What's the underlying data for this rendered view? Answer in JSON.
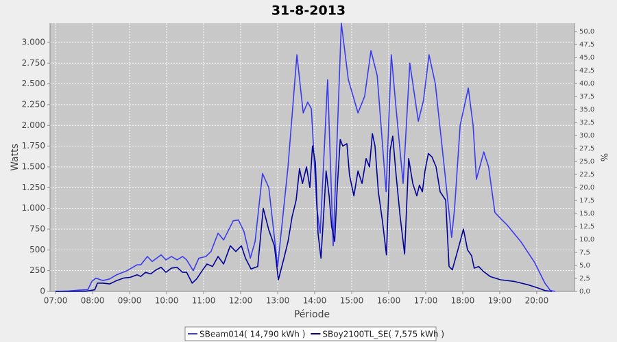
{
  "chart_data": {
    "type": "line",
    "title": "31-8-2013",
    "xlabel": "Période",
    "ylabel": "Watts",
    "y2label": "%",
    "grid": true,
    "legend": "bottom",
    "xlim": [
      6.85,
      21.02
    ],
    "xticks": [
      {
        "value": 7,
        "label": "07:00"
      },
      {
        "value": 8,
        "label": "08:00"
      },
      {
        "value": 9,
        "label": "09:00"
      },
      {
        "value": 10,
        "label": "10:00"
      },
      {
        "value": 11,
        "label": "11:00"
      },
      {
        "value": 12,
        "label": "12:00"
      },
      {
        "value": 13,
        "label": "13:00"
      },
      {
        "value": 14,
        "label": "14:00"
      },
      {
        "value": 15,
        "label": "15:00"
      },
      {
        "value": 16,
        "label": "16:00"
      },
      {
        "value": 17,
        "label": "17:00"
      },
      {
        "value": 18,
        "label": "18:00"
      },
      {
        "value": 19,
        "label": "19:00"
      },
      {
        "value": 20,
        "label": "20:00"
      }
    ],
    "ylim": [
      0,
      3230
    ],
    "yticks": [
      0,
      250,
      500,
      750,
      {
        "value": 1000,
        "label": "1.000"
      },
      {
        "value": 1250,
        "label": "1.250"
      },
      {
        "value": 1500,
        "label": "1.500"
      },
      {
        "value": 1750,
        "label": "1.750"
      },
      {
        "value": 2000,
        "label": "2.000"
      },
      {
        "value": 2250,
        "label": "2.250"
      },
      {
        "value": 2500,
        "label": "2.500"
      },
      {
        "value": 2750,
        "label": "2.750"
      },
      {
        "value": 3000,
        "label": "3.000"
      }
    ],
    "y2lim": [
      0,
      51.6
    ],
    "y2ticks": [
      {
        "value": 0,
        "label": "0,0"
      },
      {
        "value": 2.5,
        "label": "2,5"
      },
      {
        "value": 5,
        "label": "5,0"
      },
      {
        "value": 7.5,
        "label": "7,5"
      },
      {
        "value": 10,
        "label": "10,0"
      },
      {
        "value": 12.5,
        "label": "12,5"
      },
      {
        "value": 15,
        "label": "15,0"
      },
      {
        "value": 17.5,
        "label": "17,5"
      },
      {
        "value": 20,
        "label": "20,0"
      },
      {
        "value": 22.5,
        "label": "22,5"
      },
      {
        "value": 25,
        "label": "25,0"
      },
      {
        "value": 27.5,
        "label": "27,5"
      },
      {
        "value": 30,
        "label": "30,0"
      },
      {
        "value": 32.5,
        "label": "32,5"
      },
      {
        "value": 35,
        "label": "35,0"
      },
      {
        "value": 37.5,
        "label": "37,5"
      },
      {
        "value": 40,
        "label": "40,0"
      },
      {
        "value": 42.5,
        "label": "42,5"
      },
      {
        "value": 45,
        "label": "45,0"
      },
      {
        "value": 47.5,
        "label": "47,5"
      },
      {
        "value": 50,
        "label": "50,0"
      }
    ],
    "series": [
      {
        "name": "SBeam014( 14,790 kWh )",
        "color": "#3a3aee",
        "x": [
          7.0,
          7.35,
          7.63,
          7.87,
          7.98,
          8.09,
          8.28,
          8.46,
          8.65,
          8.93,
          9.2,
          9.3,
          9.48,
          9.61,
          9.85,
          9.98,
          10.13,
          10.28,
          10.43,
          10.54,
          10.72,
          10.87,
          11.06,
          11.2,
          11.39,
          11.54,
          11.8,
          11.94,
          12.09,
          12.26,
          12.39,
          12.59,
          12.76,
          13.0,
          13.28,
          13.52,
          13.69,
          13.81,
          13.91,
          14.06,
          14.15,
          14.35,
          14.5,
          14.72,
          14.91,
          15.17,
          15.35,
          15.52,
          15.69,
          15.93,
          16.07,
          16.2,
          16.39,
          16.57,
          16.8,
          16.94,
          17.09,
          17.26,
          17.5,
          17.7,
          17.78,
          17.93,
          18.15,
          18.28,
          18.37,
          18.57,
          18.7,
          18.87,
          19.02,
          19.2,
          19.57,
          19.94,
          20.22,
          20.37,
          20.5
        ],
        "values": [
          0,
          5,
          15,
          20,
          120,
          160,
          130,
          150,
          200,
          250,
          320,
          320,
          420,
          360,
          440,
          380,
          420,
          380,
          420,
          380,
          250,
          400,
          420,
          480,
          700,
          620,
          850,
          860,
          720,
          400,
          600,
          1420,
          1250,
          300,
          1500,
          2850,
          2150,
          2280,
          2200,
          1000,
          700,
          2550,
          550,
          3230,
          2550,
          2150,
          2350,
          2900,
          2600,
          1200,
          2850,
          2200,
          1300,
          2750,
          2050,
          2300,
          2850,
          2500,
          1500,
          650,
          1000,
          2000,
          2450,
          2000,
          1350,
          1680,
          1500,
          950,
          880,
          800,
          600,
          350,
          100,
          10,
          0
        ]
      },
      {
        "name": "SBoy2100TL_SE( 7,575 kWh )",
        "color": "#000099",
        "x": [
          7.0,
          7.81,
          8.06,
          8.13,
          8.28,
          8.46,
          8.65,
          8.83,
          9.02,
          9.2,
          9.3,
          9.43,
          9.57,
          9.72,
          9.85,
          9.98,
          10.13,
          10.28,
          10.43,
          10.54,
          10.69,
          10.81,
          10.96,
          11.09,
          11.24,
          11.39,
          11.54,
          11.72,
          11.87,
          12.02,
          12.13,
          12.28,
          12.46,
          12.61,
          12.76,
          12.91,
          13.02,
          13.17,
          13.28,
          13.39,
          13.5,
          13.59,
          13.67,
          13.78,
          13.87,
          13.94,
          14.02,
          14.09,
          14.17,
          14.26,
          14.31,
          14.39,
          14.46,
          14.54,
          14.61,
          14.69,
          14.76,
          14.87,
          14.94,
          15.06,
          15.17,
          15.28,
          15.39,
          15.48,
          15.56,
          15.63,
          15.72,
          15.83,
          15.94,
          16.04,
          16.11,
          16.2,
          16.31,
          16.43,
          16.54,
          16.65,
          16.76,
          16.83,
          16.91,
          16.98,
          17.07,
          17.17,
          17.28,
          17.39,
          17.54,
          17.63,
          17.72,
          17.87,
          18.02,
          18.13,
          18.24,
          18.31,
          18.43,
          18.56,
          18.74,
          19.02,
          19.39,
          19.76,
          20.04,
          20.22,
          20.41
        ],
        "values": [
          0,
          0,
          20,
          100,
          100,
          90,
          130,
          160,
          170,
          200,
          180,
          230,
          210,
          260,
          290,
          230,
          280,
          290,
          230,
          230,
          100,
          150,
          250,
          330,
          300,
          420,
          330,
          550,
          480,
          550,
          400,
          270,
          300,
          1000,
          740,
          550,
          140,
          400,
          600,
          900,
          1100,
          1480,
          1300,
          1500,
          1250,
          1750,
          1550,
          700,
          400,
          1050,
          1450,
          1150,
          780,
          600,
          1250,
          1830,
          1750,
          1780,
          1400,
          1150,
          1450,
          1300,
          1600,
          1500,
          1900,
          1750,
          1200,
          850,
          440,
          1700,
          1870,
          1400,
          900,
          450,
          1600,
          1300,
          1150,
          1280,
          1200,
          1450,
          1660,
          1620,
          1500,
          1200,
          1100,
          300,
          260,
          500,
          750,
          500,
          430,
          280,
          300,
          240,
          180,
          140,
          120,
          80,
          40,
          10,
          0
        ]
      }
    ]
  }
}
